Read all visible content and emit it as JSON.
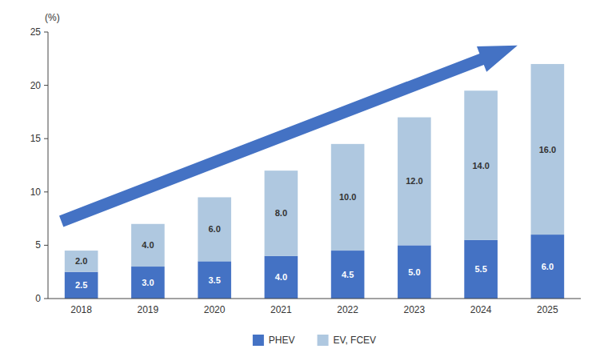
{
  "chart_data": {
    "type": "bar",
    "stacked": true,
    "data_labels": true,
    "grid": false,
    "legend": "bottom",
    "y_label": "(%)",
    "categories": [
      "2018",
      "2019",
      "2020",
      "2021",
      "2022",
      "2023",
      "2024",
      "2025"
    ],
    "series": [
      {
        "name": "PHEV",
        "color": "#4472C4",
        "values": [
          2.5,
          3.0,
          3.5,
          4.0,
          4.5,
          5.0,
          5.5,
          6.0
        ],
        "value_labels": [
          "2.5",
          "3.0",
          "3.5",
          "4.0",
          "4.5",
          "5.0",
          "5.5",
          "6.0"
        ]
      },
      {
        "name": "EV, FCEV",
        "color": "#AFC8E0",
        "values": [
          2.0,
          4.0,
          6.0,
          8.0,
          10.0,
          12.0,
          14.0,
          16.0
        ],
        "value_labels": [
          "2.0",
          "4.0",
          "6.0",
          "8.0",
          "10.0",
          "12.0",
          "14.0",
          "16.0"
        ]
      }
    ],
    "ylim": [
      0,
      25
    ],
    "yticks": [
      0,
      5,
      10,
      15,
      20,
      25
    ]
  }
}
